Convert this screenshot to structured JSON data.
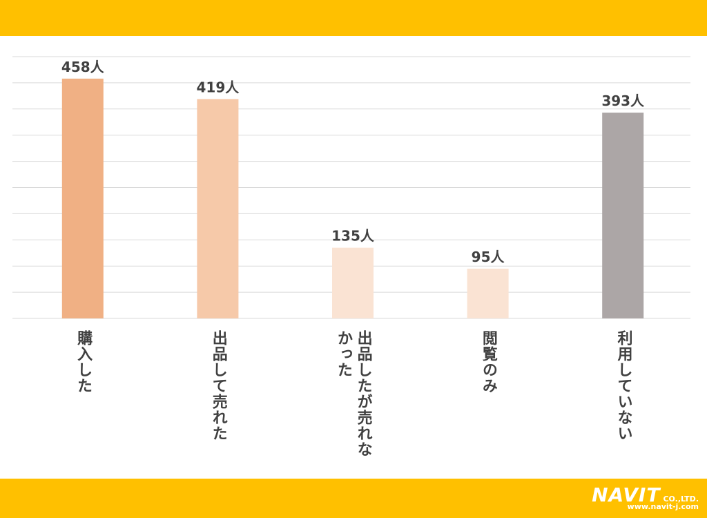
{
  "chart_data": {
    "type": "bar",
    "categories": [
      "購入した",
      "出品して売れた",
      "出品したが売れなかった",
      "閲覧のみ",
      "利用していない"
    ],
    "values": [
      458,
      419,
      135,
      95,
      393
    ],
    "value_labels": [
      "458人",
      "419人",
      "135人",
      "95人",
      "393人"
    ],
    "colors": [
      "#f0b084",
      "#f6c9a9",
      "#fae3d3",
      "#fae3d3",
      "#aca6a6"
    ],
    "ylim": [
      0,
      500
    ],
    "yticks": [
      0,
      50,
      100,
      150,
      200,
      250,
      300,
      350,
      400,
      450,
      500
    ],
    "grid": true
  },
  "logo": {
    "name": "NAVIT",
    "suffix": "CO.,LTD.",
    "url": "www.navit-j.com"
  }
}
